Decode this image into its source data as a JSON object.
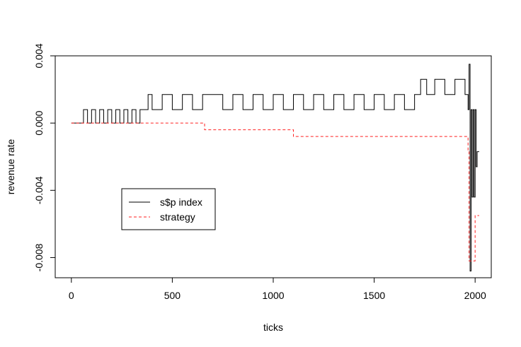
{
  "chart_data": {
    "type": "line",
    "title": "",
    "xlabel": "ticks",
    "ylabel": "revenue rate",
    "xlim": [
      -80,
      2080
    ],
    "ylim": [
      -0.0092,
      0.004
    ],
    "xticks": [
      0,
      500,
      1000,
      1500,
      2000
    ],
    "xtick_labels": [
      "0",
      "500",
      "1000",
      "1500",
      "2000"
    ],
    "yticks": [
      -0.008,
      -0.004,
      0.0,
      0.004
    ],
    "ytick_labels": [
      "-0.008",
      "-0.004",
      "0.000",
      "0.004"
    ],
    "grid": false,
    "legend_position": "bottom-left",
    "series": [
      {
        "name": "s$p index",
        "color": "#000000",
        "dash": "solid",
        "x": [
          0,
          60,
          80,
          100,
          120,
          140,
          160,
          180,
          200,
          220,
          240,
          260,
          280,
          300,
          320,
          340,
          360,
          380,
          400,
          450,
          500,
          550,
          600,
          650,
          700,
          750,
          800,
          850,
          900,
          950,
          1000,
          1050,
          1100,
          1150,
          1200,
          1250,
          1300,
          1350,
          1400,
          1450,
          1500,
          1550,
          1600,
          1650,
          1700,
          1730,
          1760,
          1800,
          1850,
          1900,
          1950,
          1965,
          1970,
          1975,
          1980,
          1985,
          1990,
          1995,
          2000,
          2005,
          2010,
          2020
        ],
        "y": [
          0.0,
          0.0008,
          0.0,
          0.0008,
          0.0,
          0.0008,
          0.0,
          0.0008,
          0.0,
          0.0008,
          0.0,
          0.0008,
          0.0,
          0.0008,
          0.0,
          0.0008,
          0.0008,
          0.0017,
          0.0008,
          0.0017,
          0.0008,
          0.0017,
          0.0008,
          0.0017,
          0.0017,
          0.0008,
          0.0017,
          0.0008,
          0.0017,
          0.0008,
          0.0017,
          0.0008,
          0.0017,
          0.0008,
          0.0017,
          0.0008,
          0.0017,
          0.0008,
          0.0017,
          0.0008,
          0.0017,
          0.0008,
          0.0017,
          0.0008,
          0.0017,
          0.0026,
          0.0017,
          0.0026,
          0.0017,
          0.0026,
          0.0017,
          0.0008,
          0.0035,
          -0.0088,
          0.0008,
          -0.0044,
          0.0008,
          -0.0044,
          0.0008,
          -0.0026,
          -0.0017,
          -0.0017
        ]
      },
      {
        "name": "strategy",
        "color": "#ff2020",
        "dash": "dashed",
        "x": [
          0,
          660,
          660,
          1100,
          1100,
          1965,
          1965,
          1970,
          1970,
          2000,
          2000,
          2020
        ],
        "y": [
          0.0,
          0.0,
          -0.0004,
          -0.0004,
          -0.0008,
          -0.0008,
          -0.0017,
          -0.0017,
          -0.0082,
          -0.0082,
          -0.0055,
          -0.0055
        ]
      }
    ]
  }
}
